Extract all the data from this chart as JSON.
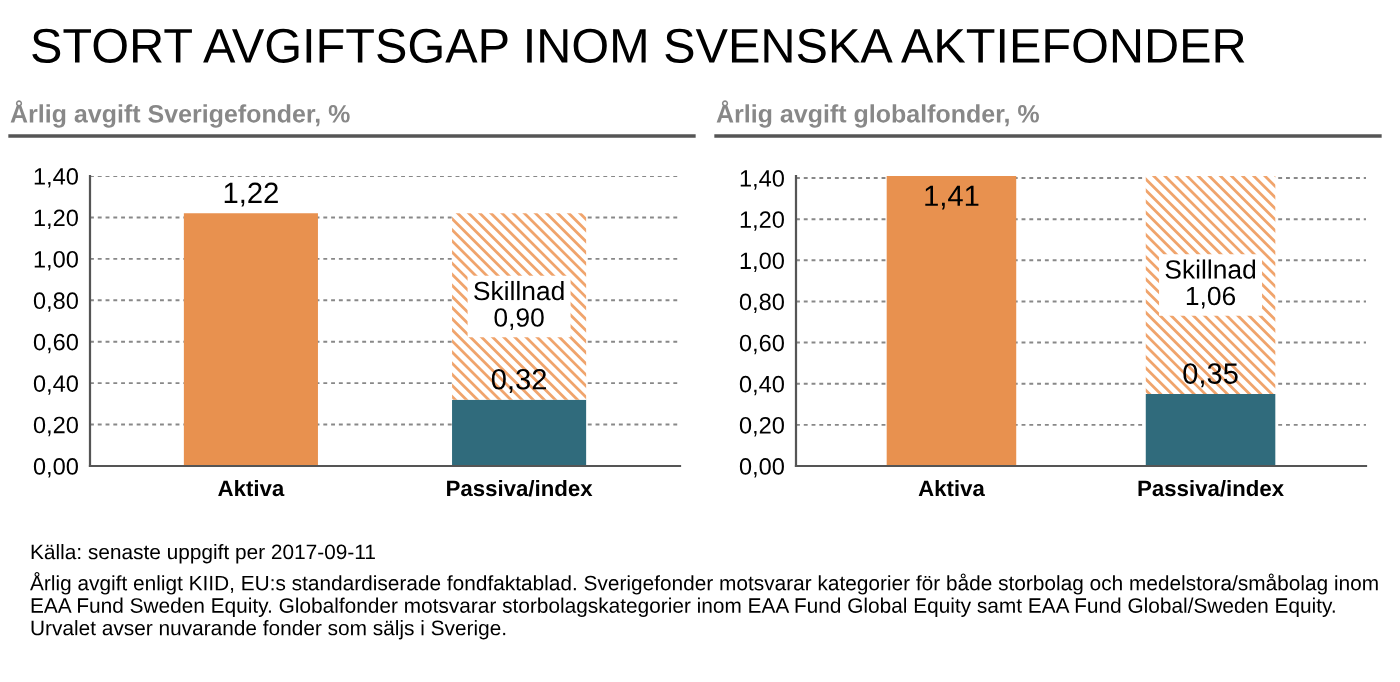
{
  "chart_data": [
    {
      "type": "bar",
      "stacked": true,
      "title": "STORT AVGIFTSGAP INOM SVENSKA AKTIEFONDER",
      "subtitle": "Årlig avgift Sverigefonder, %",
      "categories": [
        "Aktiva",
        "Passiva/index"
      ],
      "series": [
        {
          "colors": [
            "#e8914f",
            "#306b7c"
          ],
          "values": [
            1.22,
            0.32
          ],
          "value_labels": [
            "1,22",
            "0,32"
          ]
        },
        {
          "colors": [
            null,
            "#f0a46c"
          ],
          "values": [
            null,
            0.9
          ],
          "value_labels": [
            null,
            "Skillnad\n0,90"
          ]
        }
      ],
      "ylim": [
        0,
        1.4
      ],
      "yticks": [
        {
          "value": 0,
          "label": "0,00"
        },
        {
          "value": 0.2,
          "label": "0,20"
        },
        {
          "value": 0.4,
          "label": "0,40"
        },
        {
          "value": 0.6,
          "label": "0,60"
        },
        {
          "value": 0.8,
          "label": "0,80"
        },
        {
          "value": 1.0,
          "label": "1,00"
        },
        {
          "value": 1.2,
          "label": "1,20"
        },
        {
          "value": 1.4,
          "label": "1,40"
        }
      ],
      "grid": "y",
      "legend": false
    },
    {
      "type": "bar",
      "stacked": true,
      "subtitle": "Årlig avgift globalfonder, %",
      "categories": [
        "Aktiva",
        "Passiva/index"
      ],
      "series": [
        {
          "colors": [
            "#e8914f",
            "#306b7c"
          ],
          "values": [
            1.41,
            0.35
          ],
          "value_labels": [
            "1,41",
            "0,35"
          ]
        },
        {
          "colors": [
            null,
            "#f0a46c"
          ],
          "values": [
            null,
            1.06
          ],
          "value_labels": [
            null,
            "Skillnad\n1,06"
          ]
        }
      ],
      "ylim": [
        0,
        1.41
      ],
      "yticks": [
        {
          "value": 0,
          "label": "0,00"
        },
        {
          "value": 0.2,
          "label": "0,20"
        },
        {
          "value": 0.4,
          "label": "0,40"
        },
        {
          "value": 0.6,
          "label": "0,60"
        },
        {
          "value": 0.8,
          "label": "0,80"
        },
        {
          "value": 1.0,
          "label": "1,00"
        },
        {
          "value": 1.2,
          "label": "1,20"
        },
        {
          "value": 1.4,
          "label": "1,40"
        }
      ],
      "grid": "y",
      "legend": false,
      "annotations": [
        "Källa: senaste uppgift per 2017-09-11",
        "Årlig avgift enligt KIID, EU:s standardiserade fondfaktablad. Sverigefonder motsvarar kategorier för både storbolag och medelstora/småbolag inom EAA Fund Sweden Equity. Globalfonder motsvarar storbolagskategorier inom EAA Fund Global Equity samt EAA Fund Global/Sweden Equity. Urvalet avser nuvarande fonder som säljs i Sverige."
      ]
    }
  ]
}
